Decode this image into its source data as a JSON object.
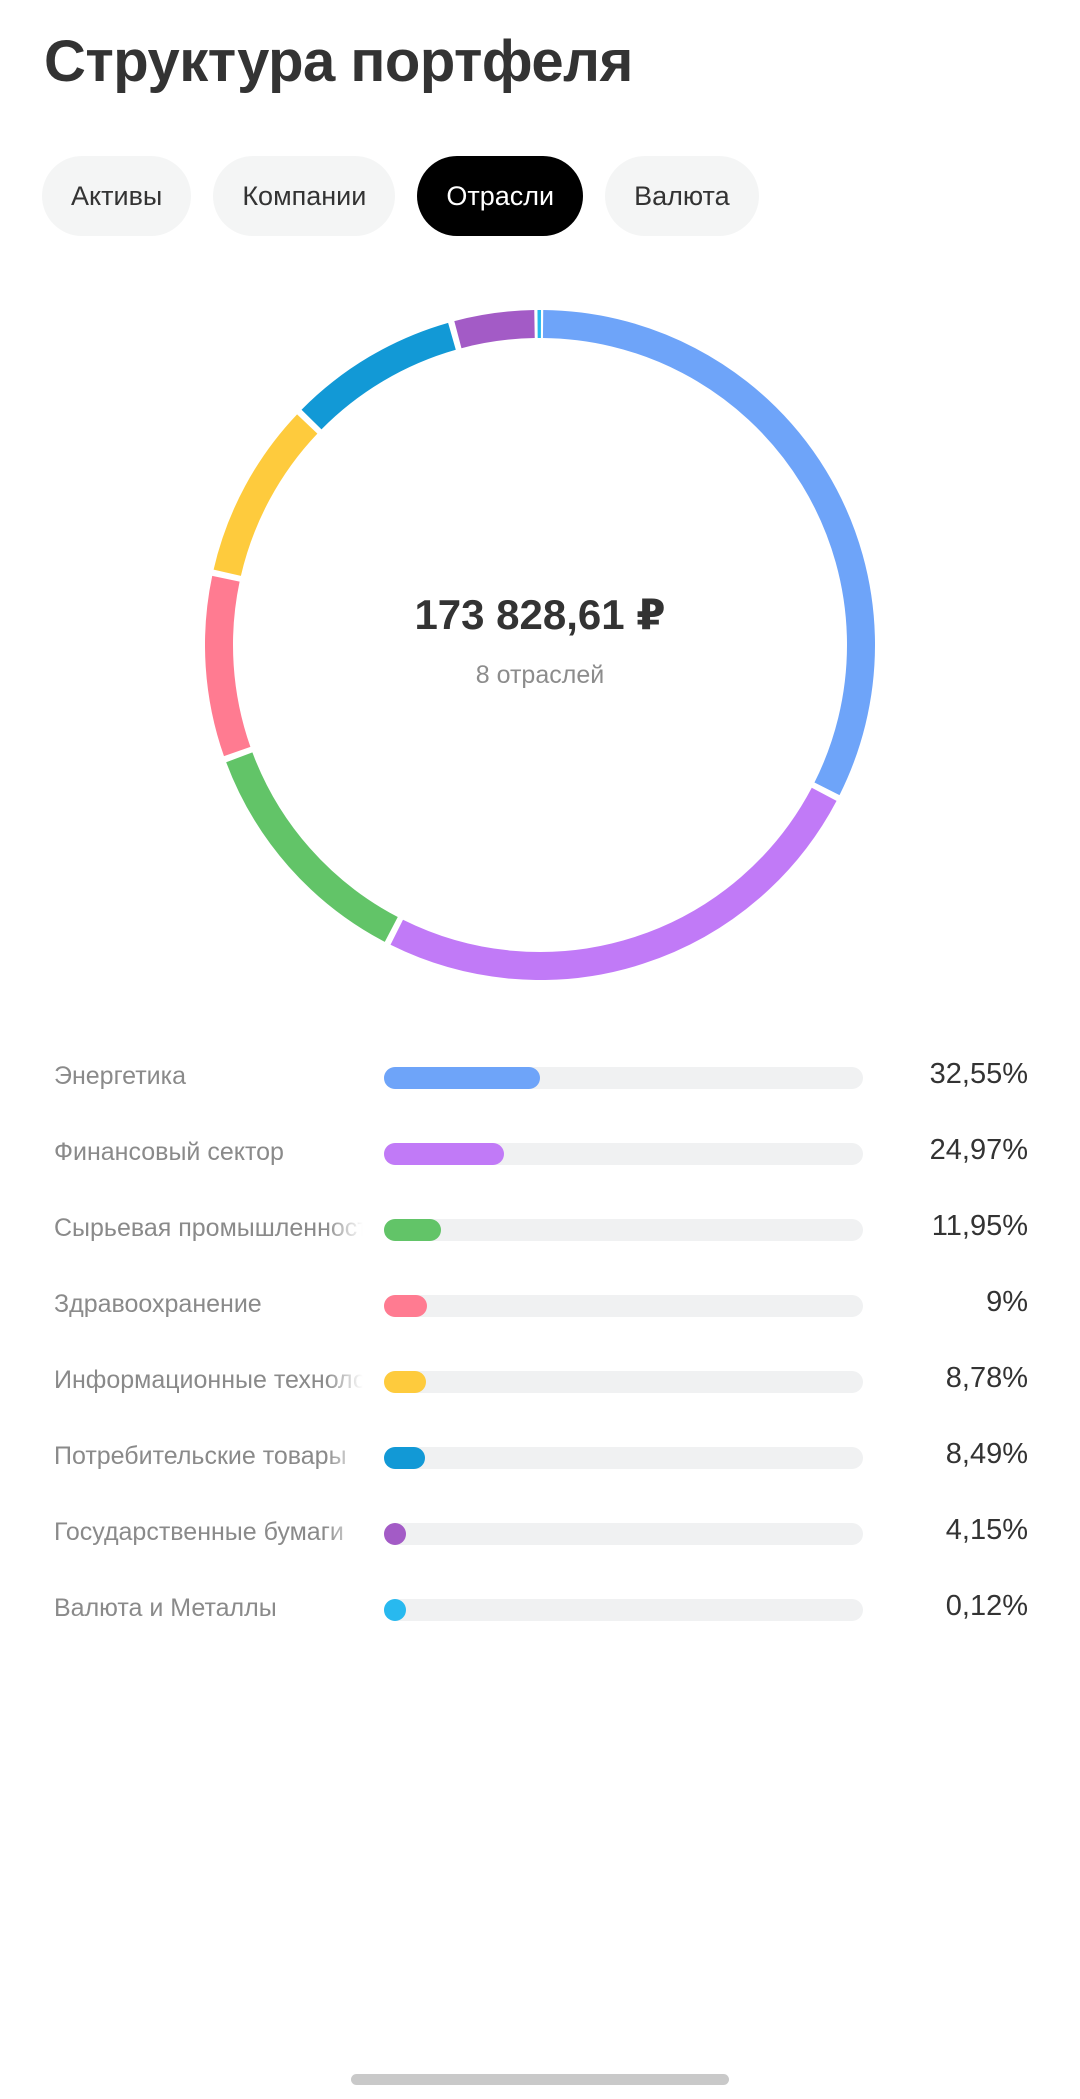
{
  "page": {
    "title": "Структура портфеля"
  },
  "tabs": [
    {
      "label": "Активы",
      "active": false
    },
    {
      "label": "Компании",
      "active": false
    },
    {
      "label": "Отрасли",
      "active": true
    },
    {
      "label": "Валюта",
      "active": false
    }
  ],
  "summary": {
    "total": "173 828,61 ₽",
    "sectors_count": "8 отраслей"
  },
  "chart_data": {
    "type": "pie",
    "style": "donut",
    "categories": [
      "Энергетика",
      "Финансовый сектор",
      "Сырьевая промышленность",
      "Здравоохранение",
      "Информационные технологии",
      "Потребительские товары",
      "Государственные бумаги",
      "Валюта и Металлы"
    ],
    "values": [
      32.55,
      24.97,
      11.95,
      9,
      8.78,
      8.49,
      4.15,
      0.12
    ],
    "value_labels": [
      "32,55%",
      "24,97%",
      "11,95%",
      "9%",
      "8,78%",
      "8,49%",
      "4,15%",
      "0,12%"
    ],
    "colors": [
      "#6ea4f9",
      "#c17af7",
      "#62c468",
      "#ff7b91",
      "#fecb3d",
      "#1299d6",
      "#a35bc6",
      "#28b9ef"
    ],
    "unit": "%"
  }
}
